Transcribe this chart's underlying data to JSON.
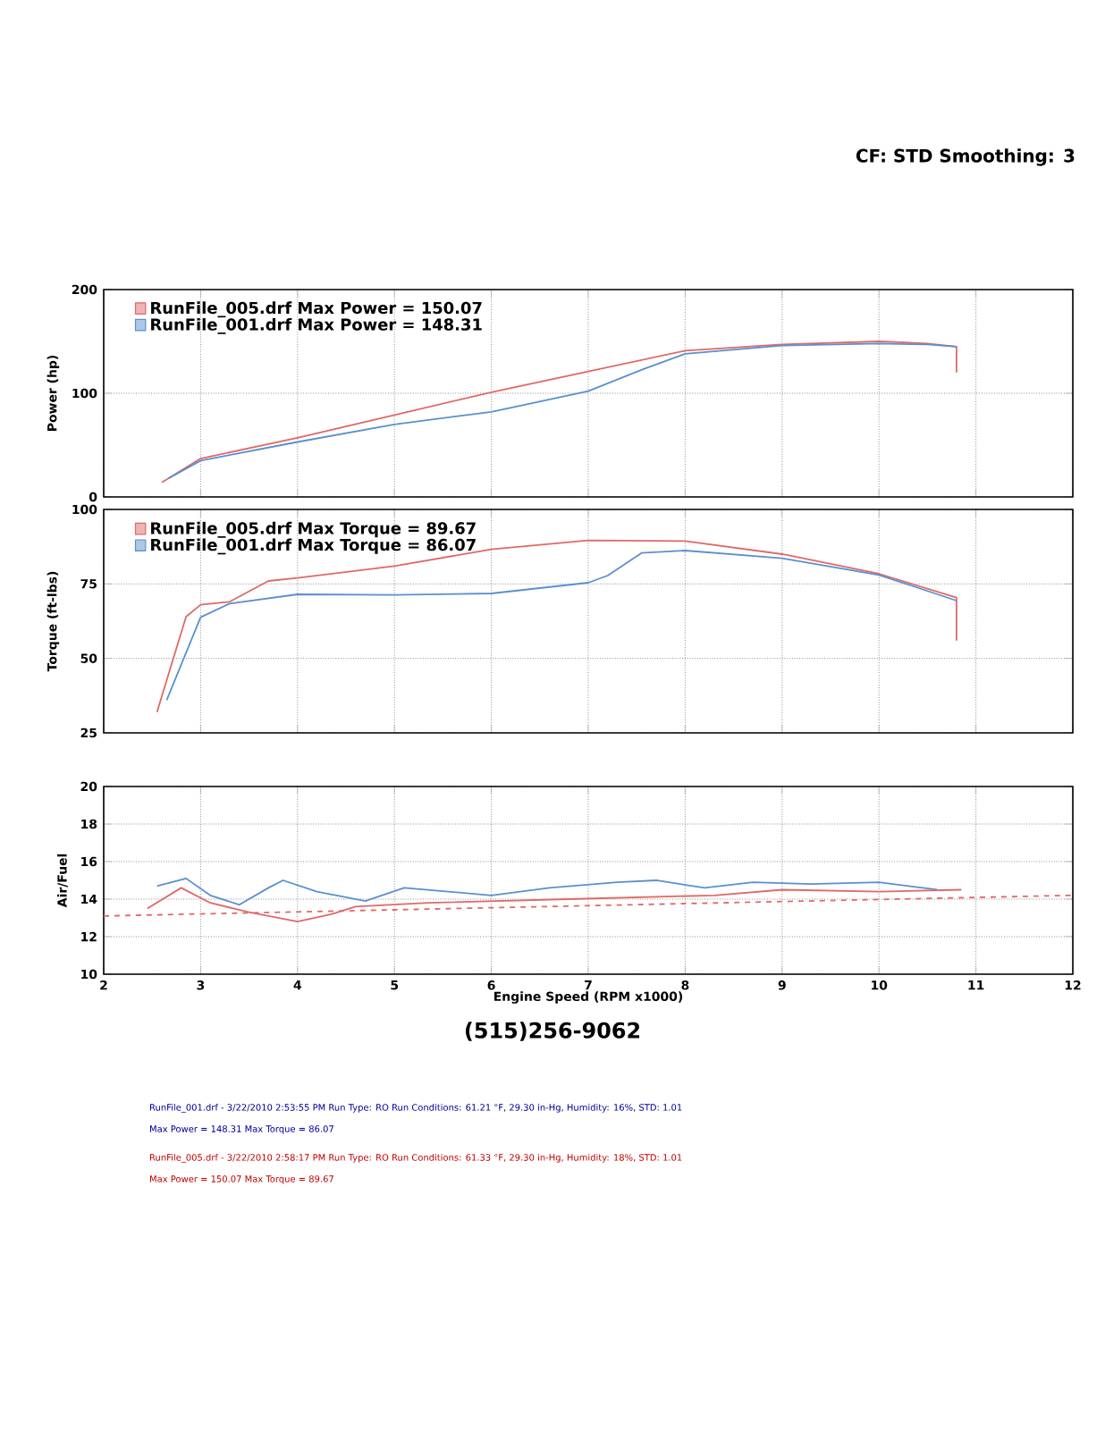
{
  "chart_data": [
    {
      "type": "line",
      "ylabel": "Power (hp)",
      "xlim": [
        2,
        12
      ],
      "xticks": [
        2,
        3,
        4,
        5,
        6,
        7,
        8,
        9,
        10,
        11,
        12
      ],
      "ylim": [
        0,
        200
      ],
      "yticks": [
        0,
        100,
        200
      ],
      "tick_labels": "y",
      "grid": true,
      "legend": "top left",
      "marker": "none",
      "line_style": "solid",
      "annotations": [
        "CF: STD  Smoothing: 3"
      ],
      "series": [
        {
          "name": "RunFile_005.drf Max Power = 150.07",
          "color": "#e06868",
          "x": [
            2.6,
            3,
            4,
            5,
            6,
            7,
            8,
            9,
            10,
            10.5,
            10.8,
            10.8
          ],
          "values": [
            14,
            37,
            57,
            79,
            101,
            121,
            141,
            147,
            150,
            148,
            145,
            120
          ]
        },
        {
          "name": "RunFile_001.drf Max Power = 148.31",
          "color": "#5b8fd0",
          "x": [
            2.67,
            3,
            4,
            5,
            6,
            7,
            7.56,
            8,
            9,
            10,
            10.5,
            10.8
          ],
          "values": [
            18,
            35,
            53,
            70,
            82,
            102,
            123,
            138,
            146,
            148,
            147,
            145
          ]
        }
      ]
    },
    {
      "type": "line",
      "ylabel": "Torque (ft-lbs)",
      "xlim": [
        2,
        12
      ],
      "xticks": [
        2,
        3,
        4,
        5,
        6,
        7,
        8,
        9,
        10,
        11,
        12
      ],
      "ylim": [
        25,
        100
      ],
      "yticks": [
        25,
        50,
        75,
        100
      ],
      "tick_labels": "y",
      "grid": true,
      "legend": "top left",
      "marker": "none",
      "line_style": "solid",
      "series": [
        {
          "name": "RunFile_005.drf Max Torque = 89.67",
          "color": "#e06868",
          "x": [
            2.55,
            2.85,
            3.0,
            3.3,
            3.7,
            4.0,
            5,
            6,
            7,
            8,
            9,
            10,
            10.8,
            10.8
          ],
          "values": [
            32,
            64,
            68,
            69,
            76,
            77,
            81,
            86.6,
            89.6,
            89.4,
            85,
            78.4,
            70.4,
            56
          ]
        },
        {
          "name": "RunFile_001.drf Max Torque = 86.07",
          "color": "#5b8fd0",
          "x": [
            2.65,
            3,
            3.3,
            4,
            5,
            6,
            7,
            7.2,
            7.55,
            8,
            9,
            10,
            10.8
          ],
          "values": [
            36,
            63.8,
            68.4,
            71.5,
            71.3,
            71.8,
            75.4,
            77.8,
            85.4,
            86.2,
            83.6,
            78,
            69.4
          ]
        }
      ]
    },
    {
      "type": "line",
      "ylabel": "Air/Fuel",
      "xlabel": "Engine Speed (RPM x1000)",
      "xlim": [
        2,
        12
      ],
      "xticks": [
        2,
        3,
        4,
        5,
        6,
        7,
        8,
        9,
        10,
        11,
        12
      ],
      "ylim": [
        10,
        20
      ],
      "yticks": [
        10,
        12,
        14,
        16,
        18,
        20
      ],
      "grid": true,
      "marker": "none",
      "line_style": "solid",
      "annotations": [
        "(515)256-9062",
        "RunFile_001.drf - 3/22/2010 2:53:55 PM  Run Type: RO  Run Conditions: 61.21 °F, 29.30 in-Hg,  Humidity: 16%, STD: 1.01",
        "Max Power = 148.31  Max Torque = 86.07",
        "RunFile_005.drf - 3/22/2010 2:58:17 PM  Run Type: RO  Run Conditions: 61.33 °F, 29.30 in-Hg,  Humidity: 18%, STD: 1.01",
        "Max Power = 150.07  Max Torque = 89.67"
      ],
      "series": [
        {
          "color": "#5b8fd0",
          "x": [
            2.55,
            2.85,
            3.1,
            3.4,
            3.7,
            3.85,
            4.2,
            4.7,
            5.1,
            6,
            6.6,
            7.3,
            7.7,
            8.2,
            8.7,
            9.3,
            10,
            10.6
          ],
          "values": [
            14.7,
            15.1,
            14.2,
            13.7,
            14.6,
            15.0,
            14.4,
            13.9,
            14.6,
            14.2,
            14.6,
            14.9,
            15.0,
            14.6,
            14.9,
            14.8,
            14.9,
            14.5
          ]
        },
        {
          "color": "#e06868",
          "x": [
            2.45,
            2.8,
            3.1,
            3.5,
            4,
            4.35,
            4.6,
            5.35,
            6.8,
            8.3,
            9,
            10,
            10.85
          ],
          "values": [
            13.5,
            14.6,
            13.8,
            13.3,
            12.8,
            13.2,
            13.6,
            13.8,
            14.0,
            14.2,
            14.5,
            14.4,
            14.5
          ]
        },
        {
          "color": "#e06868",
          "line_style": "dashed",
          "x": [
            2,
            12
          ],
          "values": [
            13.1,
            14.2
          ]
        }
      ]
    }
  ]
}
